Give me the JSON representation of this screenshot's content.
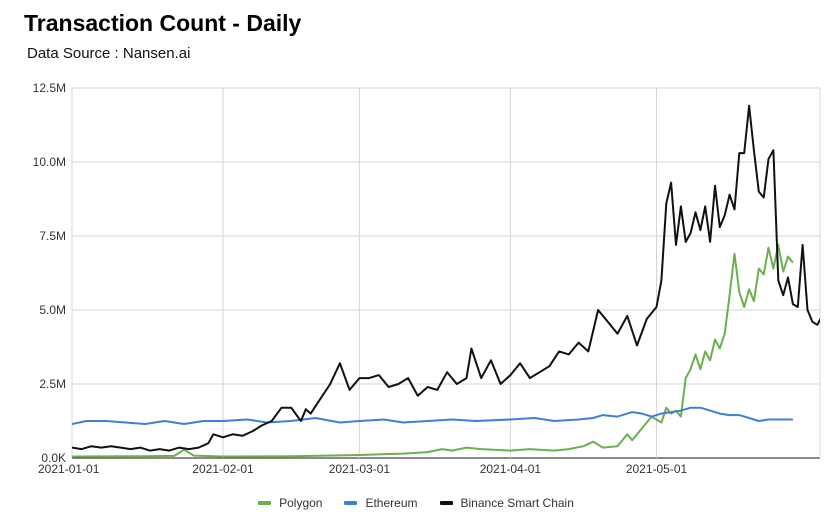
{
  "chart_data": {
    "type": "line",
    "title": "Transaction Count - Daily",
    "subtitle": "Data Source : Nansen.ai",
    "x_start": "2021-01-01",
    "x_end": "2021-05-28",
    "x_ticks": [
      "2021-01-01",
      "2021-02-01",
      "2021-03-01",
      "2021-04-01",
      "2021-05-01"
    ],
    "y_ticks": [
      {
        "value": 0,
        "label": "0.0K"
      },
      {
        "value": 2500000,
        "label": "2.5M"
      },
      {
        "value": 5000000,
        "label": "5.0M"
      },
      {
        "value": 7500000,
        "label": "7.5M"
      },
      {
        "value": 10000000,
        "label": "10.0M"
      },
      {
        "value": 12500000,
        "label": "12.5M"
      }
    ],
    "ylim": [
      0,
      12500000
    ],
    "grid": true,
    "legend_position": "bottom",
    "series": [
      {
        "name": "Polygon",
        "color": "#6ab04c",
        "points": [
          [
            "2021-01-01",
            50000
          ],
          [
            "2021-01-15",
            60000
          ],
          [
            "2021-01-22",
            70000
          ],
          [
            "2021-01-24",
            280000
          ],
          [
            "2021-01-26",
            80000
          ],
          [
            "2021-02-01",
            50000
          ],
          [
            "2021-02-15",
            60000
          ],
          [
            "2021-03-01",
            100000
          ],
          [
            "2021-03-10",
            150000
          ],
          [
            "2021-03-15",
            200000
          ],
          [
            "2021-03-18",
            300000
          ],
          [
            "2021-03-20",
            250000
          ],
          [
            "2021-03-23",
            350000
          ],
          [
            "2021-03-26",
            300000
          ],
          [
            "2021-04-01",
            250000
          ],
          [
            "2021-04-05",
            300000
          ],
          [
            "2021-04-10",
            250000
          ],
          [
            "2021-04-13",
            300000
          ],
          [
            "2021-04-16",
            400000
          ],
          [
            "2021-04-18",
            550000
          ],
          [
            "2021-04-20",
            350000
          ],
          [
            "2021-04-23",
            400000
          ],
          [
            "2021-04-25",
            800000
          ],
          [
            "2021-04-26",
            600000
          ],
          [
            "2021-04-28",
            1000000
          ],
          [
            "2021-04-30",
            1400000
          ],
          [
            "2021-05-02",
            1200000
          ],
          [
            "2021-05-03",
            1700000
          ],
          [
            "2021-05-04",
            1500000
          ],
          [
            "2021-05-05",
            1600000
          ],
          [
            "2021-05-06",
            1400000
          ],
          [
            "2021-05-07",
            2700000
          ],
          [
            "2021-05-08",
            3000000
          ],
          [
            "2021-05-09",
            3500000
          ],
          [
            "2021-05-10",
            3000000
          ],
          [
            "2021-05-11",
            3600000
          ],
          [
            "2021-05-12",
            3300000
          ],
          [
            "2021-05-13",
            4000000
          ],
          [
            "2021-05-14",
            3700000
          ],
          [
            "2021-05-15",
            4200000
          ],
          [
            "2021-05-16",
            5500000
          ],
          [
            "2021-05-17",
            6900000
          ],
          [
            "2021-05-18",
            5600000
          ],
          [
            "2021-05-19",
            5100000
          ],
          [
            "2021-05-20",
            5700000
          ],
          [
            "2021-05-21",
            5300000
          ],
          [
            "2021-05-22",
            6400000
          ],
          [
            "2021-05-23",
            6200000
          ],
          [
            "2021-05-24",
            7100000
          ],
          [
            "2021-05-25",
            6400000
          ],
          [
            "2021-05-26",
            7200000
          ],
          [
            "2021-05-27",
            6300000
          ],
          [
            "2021-05-28",
            6800000
          ],
          [
            "2021-05-29",
            6600000
          ]
        ]
      },
      {
        "name": "Ethereum",
        "color": "#3f7fd6",
        "points": [
          [
            "2021-01-01",
            1150000
          ],
          [
            "2021-01-04",
            1250000
          ],
          [
            "2021-01-08",
            1250000
          ],
          [
            "2021-01-12",
            1200000
          ],
          [
            "2021-01-16",
            1150000
          ],
          [
            "2021-01-20",
            1250000
          ],
          [
            "2021-01-24",
            1150000
          ],
          [
            "2021-01-28",
            1250000
          ],
          [
            "2021-02-01",
            1250000
          ],
          [
            "2021-02-06",
            1300000
          ],
          [
            "2021-02-10",
            1200000
          ],
          [
            "2021-02-15",
            1250000
          ],
          [
            "2021-02-20",
            1350000
          ],
          [
            "2021-02-25",
            1200000
          ],
          [
            "2021-03-01",
            1250000
          ],
          [
            "2021-03-06",
            1300000
          ],
          [
            "2021-03-10",
            1200000
          ],
          [
            "2021-03-15",
            1250000
          ],
          [
            "2021-03-20",
            1300000
          ],
          [
            "2021-03-25",
            1250000
          ],
          [
            "2021-04-01",
            1300000
          ],
          [
            "2021-04-06",
            1350000
          ],
          [
            "2021-04-10",
            1250000
          ],
          [
            "2021-04-15",
            1300000
          ],
          [
            "2021-04-18",
            1350000
          ],
          [
            "2021-04-20",
            1450000
          ],
          [
            "2021-04-23",
            1400000
          ],
          [
            "2021-04-26",
            1550000
          ],
          [
            "2021-04-28",
            1500000
          ],
          [
            "2021-04-30",
            1400000
          ],
          [
            "2021-05-02",
            1500000
          ],
          [
            "2021-05-04",
            1550000
          ],
          [
            "2021-05-06",
            1600000
          ],
          [
            "2021-05-08",
            1700000
          ],
          [
            "2021-05-10",
            1700000
          ],
          [
            "2021-05-12",
            1600000
          ],
          [
            "2021-05-14",
            1500000
          ],
          [
            "2021-05-16",
            1450000
          ],
          [
            "2021-05-18",
            1450000
          ],
          [
            "2021-05-20",
            1350000
          ],
          [
            "2021-05-22",
            1250000
          ],
          [
            "2021-05-24",
            1300000
          ],
          [
            "2021-05-26",
            1300000
          ],
          [
            "2021-05-29",
            1300000
          ]
        ]
      },
      {
        "name": "Binance Smart Chain",
        "color": "#111111",
        "points": [
          [
            "2021-01-01",
            350000
          ],
          [
            "2021-01-03",
            300000
          ],
          [
            "2021-01-05",
            400000
          ],
          [
            "2021-01-07",
            350000
          ],
          [
            "2021-01-09",
            400000
          ],
          [
            "2021-01-11",
            350000
          ],
          [
            "2021-01-13",
            300000
          ],
          [
            "2021-01-15",
            350000
          ],
          [
            "2021-01-17",
            250000
          ],
          [
            "2021-01-19",
            300000
          ],
          [
            "2021-01-21",
            250000
          ],
          [
            "2021-01-23",
            350000
          ],
          [
            "2021-01-25",
            300000
          ],
          [
            "2021-01-27",
            350000
          ],
          [
            "2021-01-29",
            500000
          ],
          [
            "2021-01-30",
            800000
          ],
          [
            "2021-02-01",
            700000
          ],
          [
            "2021-02-03",
            800000
          ],
          [
            "2021-02-05",
            750000
          ],
          [
            "2021-02-07",
            900000
          ],
          [
            "2021-02-09",
            1100000
          ],
          [
            "2021-02-11",
            1250000
          ],
          [
            "2021-02-13",
            1700000
          ],
          [
            "2021-02-15",
            1700000
          ],
          [
            "2021-02-17",
            1250000
          ],
          [
            "2021-02-18",
            1650000
          ],
          [
            "2021-02-19",
            1500000
          ],
          [
            "2021-02-21",
            2000000
          ],
          [
            "2021-02-23",
            2500000
          ],
          [
            "2021-02-25",
            3200000
          ],
          [
            "2021-02-27",
            2300000
          ],
          [
            "2021-03-01",
            2700000
          ],
          [
            "2021-03-03",
            2700000
          ],
          [
            "2021-03-05",
            2800000
          ],
          [
            "2021-03-07",
            2400000
          ],
          [
            "2021-03-09",
            2500000
          ],
          [
            "2021-03-11",
            2700000
          ],
          [
            "2021-03-13",
            2100000
          ],
          [
            "2021-03-15",
            2400000
          ],
          [
            "2021-03-17",
            2300000
          ],
          [
            "2021-03-19",
            2900000
          ],
          [
            "2021-03-21",
            2500000
          ],
          [
            "2021-03-23",
            2700000
          ],
          [
            "2021-03-24",
            3700000
          ],
          [
            "2021-03-26",
            2700000
          ],
          [
            "2021-03-28",
            3300000
          ],
          [
            "2021-03-30",
            2500000
          ],
          [
            "2021-04-01",
            2800000
          ],
          [
            "2021-04-03",
            3200000
          ],
          [
            "2021-04-05",
            2700000
          ],
          [
            "2021-04-07",
            2900000
          ],
          [
            "2021-04-09",
            3100000
          ],
          [
            "2021-04-11",
            3600000
          ],
          [
            "2021-04-13",
            3500000
          ],
          [
            "2021-04-15",
            3900000
          ],
          [
            "2021-04-17",
            3600000
          ],
          [
            "2021-04-19",
            5000000
          ],
          [
            "2021-04-21",
            4600000
          ],
          [
            "2021-04-23",
            4200000
          ],
          [
            "2021-04-25",
            4800000
          ],
          [
            "2021-04-27",
            3800000
          ],
          [
            "2021-04-29",
            4700000
          ],
          [
            "2021-05-01",
            5100000
          ],
          [
            "2021-05-02",
            6000000
          ],
          [
            "2021-05-03",
            8600000
          ],
          [
            "2021-05-04",
            9300000
          ],
          [
            "2021-05-05",
            7200000
          ],
          [
            "2021-05-06",
            8500000
          ],
          [
            "2021-05-07",
            7300000
          ],
          [
            "2021-05-08",
            7600000
          ],
          [
            "2021-05-09",
            8300000
          ],
          [
            "2021-05-10",
            7700000
          ],
          [
            "2021-05-11",
            8500000
          ],
          [
            "2021-05-12",
            7300000
          ],
          [
            "2021-05-13",
            9200000
          ],
          [
            "2021-05-14",
            7800000
          ],
          [
            "2021-05-15",
            8200000
          ],
          [
            "2021-05-16",
            8900000
          ],
          [
            "2021-05-17",
            8400000
          ],
          [
            "2021-05-18",
            10300000
          ],
          [
            "2021-05-19",
            10300000
          ],
          [
            "2021-05-20",
            11900000
          ],
          [
            "2021-05-21",
            10400000
          ],
          [
            "2021-05-22",
            9000000
          ],
          [
            "2021-05-23",
            8800000
          ],
          [
            "2021-05-24",
            10100000
          ],
          [
            "2021-05-25",
            10400000
          ],
          [
            "2021-05-26",
            6000000
          ],
          [
            "2021-05-27",
            5500000
          ],
          [
            "2021-05-28",
            6100000
          ],
          [
            "2021-05-29",
            5200000
          ],
          [
            "2021-05-30",
            5100000
          ],
          [
            "2021-05-31",
            7200000
          ],
          [
            "2021-06-01",
            5000000
          ],
          [
            "2021-06-02",
            4600000
          ],
          [
            "2021-06-03",
            4500000
          ],
          [
            "2021-06-04",
            4800000
          ],
          [
            "2021-06-05",
            5200000
          ],
          [
            "2021-06-06",
            5300000
          ]
        ]
      }
    ]
  }
}
